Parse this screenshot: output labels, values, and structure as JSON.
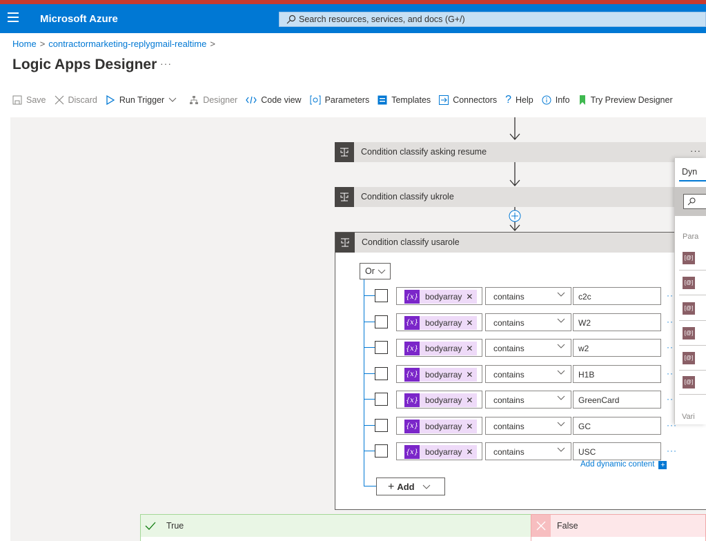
{
  "app": {
    "brand": "Microsoft Azure",
    "search_placeholder": "Search resources, services, and docs (G+/)"
  },
  "breadcrumb": {
    "home": "Home",
    "resource": "contractormarketing-replygmail-realtime"
  },
  "page": {
    "title": "Logic Apps Designer",
    "more": "···"
  },
  "toolbar": {
    "save": "Save",
    "discard": "Discard",
    "run_trigger": "Run Trigger",
    "designer": "Designer",
    "code_view": "Code view",
    "parameters": "Parameters",
    "templates": "Templates",
    "connectors": "Connectors",
    "help": "Help",
    "info": "Info",
    "try_preview": "Try Preview Designer"
  },
  "flow": {
    "step1": "Condition classify asking resume",
    "step2": "Condition classify ukrole",
    "step3": "Condition classify usarole",
    "more": "···"
  },
  "condition": {
    "group_op": "Or",
    "rows": [
      {
        "token": "bodyarray",
        "operator": "contains",
        "value": "c2c"
      },
      {
        "token": "bodyarray",
        "operator": "contains",
        "value": "W2"
      },
      {
        "token": "bodyarray",
        "operator": "contains",
        "value": "w2"
      },
      {
        "token": "bodyarray",
        "operator": "contains",
        "value": "H1B"
      },
      {
        "token": "bodyarray",
        "operator": "contains",
        "value": "GreenCard"
      },
      {
        "token": "bodyarray",
        "operator": "contains",
        "value": "GC"
      },
      {
        "token": "bodyarray",
        "operator": "contains",
        "value": "USC"
      }
    ],
    "token_icon": "{x}",
    "add_dynamic": "Add dynamic content",
    "add_label": "Add"
  },
  "dynamic_panel": {
    "title": "Dyn",
    "section": "Para",
    "variables": "Vari",
    "item_icon": "[@]"
  },
  "branches": {
    "true_label": "True",
    "false_label": "False"
  },
  "colors": {
    "azure_blue": "#0078d4",
    "token_purple": "#7b26c9",
    "true_green": "#e9f6e5",
    "false_red": "#fde7e9"
  }
}
